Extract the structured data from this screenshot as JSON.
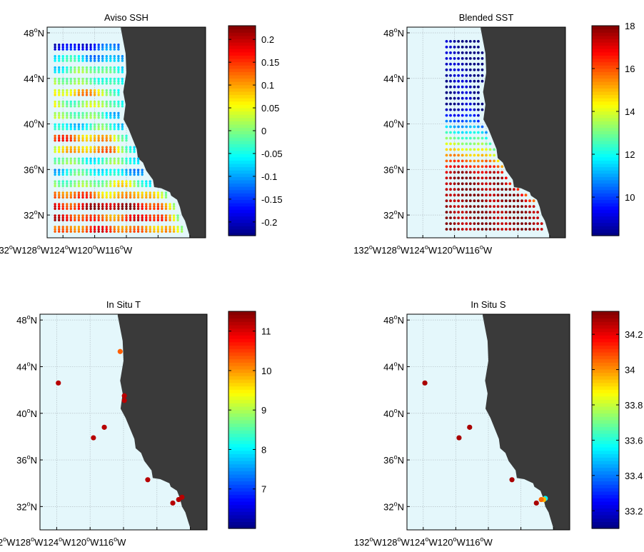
{
  "colors": {
    "ocean": "#e4f7fb",
    "land": "#3a3a3a",
    "grid": "#b4c0c6",
    "axis": "#000000"
  },
  "figure": {
    "x_tick_labels": [
      "132",
      "W128",
      "W124",
      "W120",
      "W116",
      "W"
    ],
    "y_tick_labels": [
      "48",
      "44",
      "40",
      "36",
      "32"
    ],
    "degree_symbol": "o",
    "lat_hemisphere": "N"
  },
  "chart_data": [
    {
      "type": "scatter",
      "title": "Aviso SSH",
      "xlabel": "",
      "ylabel": "",
      "xlim": [
        -134,
        -114
      ],
      "ylim": [
        30,
        48.5
      ],
      "grid": true,
      "colormap": "jet",
      "clim": [
        -0.23,
        0.23
      ],
      "colorbar_ticks": [
        "0.2",
        "0.15",
        "0.1",
        "0.05",
        "0",
        "-0.05",
        "-0.1",
        "-0.15",
        "-0.2"
      ],
      "colorbar_tick_values": [
        0.2,
        0.15,
        0.1,
        0.05,
        0,
        -0.05,
        -0.1,
        -0.15,
        -0.2
      ],
      "gridded_field": {
        "lon_start": -133,
        "lon_step": 0.5,
        "lat_start": 30.75,
        "lat_step": 1.0,
        "lat_max": 47.25,
        "row_values": [
          0.13,
          0.15,
          0.19,
          0.11,
          0.02,
          -0.06,
          -0.01,
          0.08,
          0.11,
          -0.04,
          -0.02,
          0.03,
          0.06,
          0.01,
          -0.02,
          -0.07,
          -0.16
        ],
        "wave_amplitude": 0.06,
        "nearshore_value": -0.11
      }
    },
    {
      "type": "scatter",
      "title": "Blended SST",
      "xlabel": "",
      "ylabel": "",
      "xlim": [
        -134,
        -114
      ],
      "ylim": [
        30,
        48.5
      ],
      "grid": true,
      "colormap": "jet",
      "clim": [
        8.2,
        18
      ],
      "colorbar_ticks": [
        "18",
        "16",
        "14",
        "12",
        "10"
      ],
      "colorbar_tick_values": [
        18,
        16,
        14,
        12,
        10
      ],
      "gridded_field": {
        "lon_start": -129,
        "lon_step": 0.5,
        "lat_start": 30.75,
        "lat_step": 0.5,
        "lat_max": 47.25,
        "south_value": 17.8,
        "north_value": 8.6,
        "transition_lat": [
          35.5,
          41.5
        ]
      }
    },
    {
      "type": "scatter",
      "title": "In Situ T",
      "xlabel": "",
      "ylabel": "",
      "xlim": [
        -134,
        -114
      ],
      "ylim": [
        30,
        48.5
      ],
      "grid": true,
      "colormap": "jet",
      "clim": [
        6.0,
        11.5
      ],
      "colorbar_ticks": [
        "11",
        "10",
        "9",
        "8",
        "7"
      ],
      "colorbar_tick_values": [
        11,
        10,
        9,
        8,
        7
      ],
      "points": [
        {
          "lon": -131.8,
          "lat": 42.6,
          "value": 11.2
        },
        {
          "lon": -124.4,
          "lat": 45.3,
          "value": 10.3
        },
        {
          "lon": -123.9,
          "lat": 41.5,
          "value": 11.2
        },
        {
          "lon": -123.9,
          "lat": 41.1,
          "value": 11.2
        },
        {
          "lon": -126.3,
          "lat": 38.8,
          "value": 11.2
        },
        {
          "lon": -127.6,
          "lat": 37.9,
          "value": 11.2
        },
        {
          "lon": -121.1,
          "lat": 34.3,
          "value": 11.2
        },
        {
          "lon": -118.1,
          "lat": 32.3,
          "value": 11.2
        },
        {
          "lon": -117.4,
          "lat": 32.6,
          "value": 11.2
        },
        {
          "lon": -117.0,
          "lat": 32.8,
          "value": 11.2
        }
      ]
    },
    {
      "type": "scatter",
      "title": "In Situ S",
      "xlabel": "",
      "ylabel": "",
      "xlim": [
        -134,
        -114
      ],
      "ylim": [
        30,
        48.5
      ],
      "grid": true,
      "colormap": "jet",
      "clim": [
        33.1,
        34.33
      ],
      "colorbar_ticks": [
        "34.2",
        "34",
        "33.8",
        "33.6",
        "33.4",
        "33.2"
      ],
      "colorbar_tick_values": [
        34.2,
        34.0,
        33.8,
        33.6,
        33.4,
        33.2
      ],
      "points": [
        {
          "lon": -131.8,
          "lat": 42.6,
          "value": 34.28
        },
        {
          "lon": -126.3,
          "lat": 38.8,
          "value": 34.28
        },
        {
          "lon": -127.6,
          "lat": 37.9,
          "value": 34.28
        },
        {
          "lon": -121.1,
          "lat": 34.3,
          "value": 34.28
        },
        {
          "lon": -118.1,
          "lat": 32.3,
          "value": 34.28
        },
        {
          "lon": -117.0,
          "lat": 32.7,
          "value": 33.55
        },
        {
          "lon": -117.2,
          "lat": 32.6,
          "value": 33.95
        },
        {
          "lon": -117.5,
          "lat": 32.6,
          "value": 34.05
        }
      ]
    }
  ]
}
